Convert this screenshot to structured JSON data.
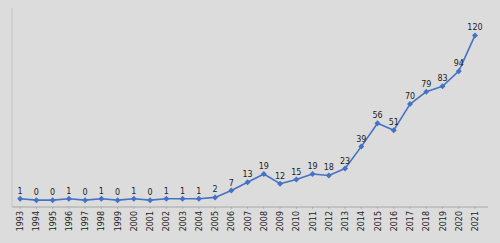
{
  "chart_data": {
    "type": "line",
    "x": [
      1993,
      1994,
      1995,
      1996,
      1997,
      1998,
      1999,
      2000,
      2001,
      2002,
      2003,
      2004,
      2005,
      2006,
      2007,
      2008,
      2009,
      2010,
      2011,
      2012,
      2013,
      2014,
      2015,
      2016,
      2017,
      2018,
      2019,
      2020,
      2021
    ],
    "values": [
      1,
      0,
      0,
      1,
      0,
      1,
      0,
      1,
      0,
      1,
      1,
      1,
      2,
      7,
      13,
      19,
      12,
      15,
      19,
      18,
      23,
      39,
      56,
      51,
      70,
      79,
      83,
      94,
      120
    ],
    "color": "#4472C4",
    "marker": "diamond",
    "xlim": [
      1992.5,
      2021.8
    ],
    "xticks": [
      1993,
      1994,
      1995,
      1996,
      1997,
      1998,
      1999,
      2000,
      2001,
      2002,
      2003,
      2004,
      2005,
      2006,
      2007,
      2008,
      2009,
      2010,
      2011,
      2012,
      2013,
      2014,
      2015,
      2016,
      2017,
      2018,
      2019,
      2020,
      2021
    ],
    "ylim": [
      -5,
      140
    ],
    "data_labels": true,
    "tick_labels": "x",
    "grid": false
  }
}
